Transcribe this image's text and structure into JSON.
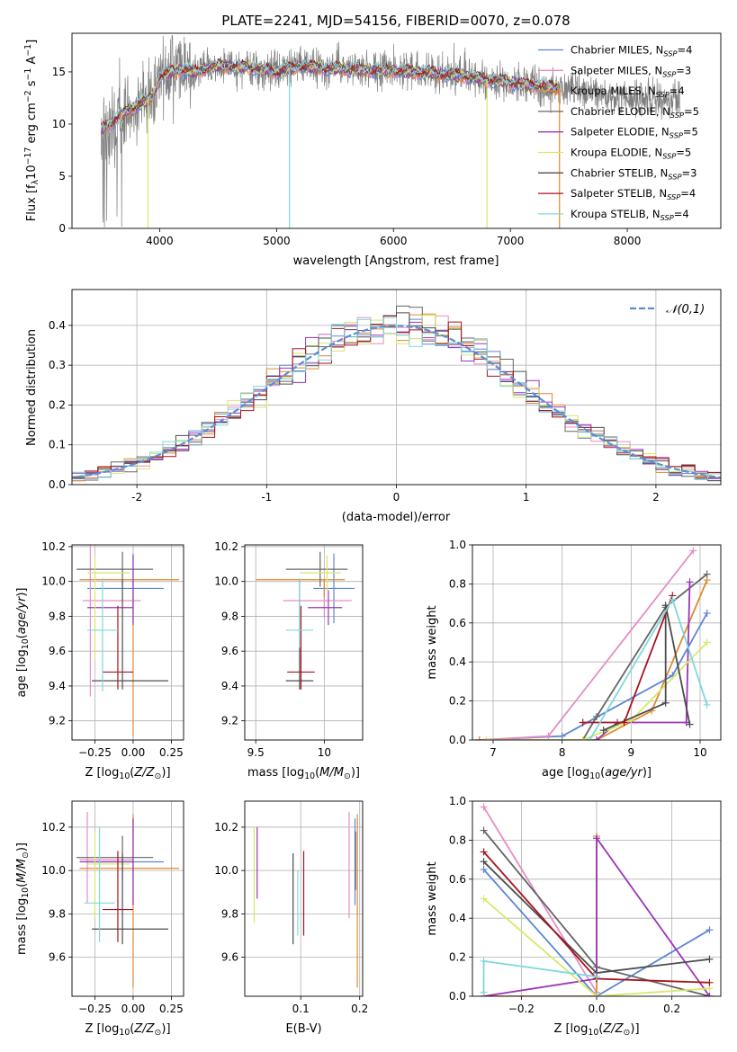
{
  "colors": {
    "Chabrier MILES": "#5b87d6",
    "Salpeter MILES": "#e58ec4",
    "Kroupa MILES": "#e08a2f",
    "Chabrier ELODIE": "#666666",
    "Salpeter ELODIE": "#9b35b9",
    "Kroupa ELODIE": "#d6e86a",
    "Chabrier STELIB": "#4d4d4d",
    "Salpeter STELIB": "#a81320",
    "Kroupa STELIB": "#7fd8dc",
    "data": "#7f7f7f",
    "normal": "#5b8ed6",
    "grid": "#b0b0b0"
  },
  "chart_data": [
    {
      "panel": "spectrum",
      "type": "line",
      "title": "PLATE=2241, MJD=54156, FIBERID=0070, z=0.078",
      "xlabel": "wavelength [Angstrom, rest frame]",
      "ylabel": "Flux [f_λ10^-17 erg cm^-2 s^-1 A^-1]",
      "xlim": [
        3250,
        8800
      ],
      "ylim": [
        0,
        18.7
      ],
      "xticks": [
        4000,
        5000,
        6000,
        7000,
        8000
      ],
      "yticks": [
        0,
        5,
        10,
        15
      ],
      "grid": false,
      "legend_position": "upper-right",
      "legend": [
        {
          "series": "Chabrier MILES",
          "label": "Chabrier MILES, N",
          "sub": "SSP",
          "tail": "=4"
        },
        {
          "series": "Salpeter MILES",
          "label": "Salpeter MILES, N",
          "sub": "SSP",
          "tail": "=3"
        },
        {
          "series": "Kroupa MILES",
          "label": "Kroupa MILES, N",
          "sub": "SSP",
          "tail": "=4"
        },
        {
          "series": "Chabrier ELODIE",
          "label": "Chabrier ELODIE, N",
          "sub": "SSP",
          "tail": "=5"
        },
        {
          "series": "Salpeter ELODIE",
          "label": "Salpeter ELODIE, N",
          "sub": "SSP",
          "tail": "=5"
        },
        {
          "series": "Kroupa ELODIE",
          "label": "Kroupa ELODIE, N",
          "sub": "SSP",
          "tail": "=5"
        },
        {
          "series": "Chabrier STELIB",
          "label": "Chabrier STELIB, N",
          "sub": "SSP",
          "tail": "=3"
        },
        {
          "series": "Salpeter STELIB",
          "label": "Salpeter STELIB, N",
          "sub": "SSP",
          "tail": "=4"
        },
        {
          "series": "Kroupa STELIB",
          "label": "Kroupa STELIB, N",
          "sub": "SSP",
          "tail": "=4"
        }
      ],
      "continuum": [
        [
          3500,
          9.5
        ],
        [
          3600,
          10.2
        ],
        [
          3700,
          11.0
        ],
        [
          3800,
          11.8
        ],
        [
          3900,
          12.3
        ],
        [
          3950,
          12.8
        ],
        [
          4000,
          14.6
        ],
        [
          4100,
          15.0
        ],
        [
          4200,
          15.2
        ],
        [
          4300,
          15.0
        ],
        [
          4500,
          15.6
        ],
        [
          4800,
          15.4
        ],
        [
          5000,
          15.0
        ],
        [
          5200,
          15.5
        ],
        [
          5500,
          15.3
        ],
        [
          6000,
          15.1
        ],
        [
          6300,
          14.9
        ],
        [
          6600,
          14.6
        ],
        [
          7000,
          14.0
        ],
        [
          7500,
          13.3
        ],
        [
          8000,
          12.6
        ],
        [
          8500,
          12.0
        ]
      ],
      "models_start": 3500,
      "models_end": 7420,
      "data_range": [
        3500,
        8450
      ],
      "dips": [
        {
          "series": "Kroupa ELODIE",
          "x": 3900,
          "y": 0
        },
        {
          "series": "Kroupa STELIB",
          "x": 5110,
          "y": 0
        },
        {
          "series": "Kroupa ELODIE",
          "x": 6800,
          "y": 0
        },
        {
          "series": "Kroupa MILES",
          "x": 7420,
          "y": 0
        }
      ]
    },
    {
      "panel": "residuals",
      "type": "histogram",
      "xlabel": "(data-model)/error",
      "ylabel": "Normed distribution",
      "xlim": [
        -2.5,
        2.5
      ],
      "ylim": [
        0,
        0.49
      ],
      "xticks": [
        -2,
        -1,
        0,
        1,
        2
      ],
      "yticks": [
        0.0,
        0.1,
        0.2,
        0.3,
        0.4
      ],
      "grid": true,
      "legend_position": "upper-right",
      "legend_label": "𝒩(0,1)",
      "bin_width": 0.1,
      "sigma": 1.0
    },
    {
      "panel": "age-vs-Z",
      "type": "errorbar",
      "xlabel": "Z [log10(Z/Z⊙)]",
      "ylabel": "age  [log10(age/yr)]",
      "xlim": [
        -0.4,
        0.33
      ],
      "ylim": [
        9.09,
        10.21
      ],
      "xticks": [
        -0.25,
        0.0,
        0.25
      ],
      "xticklabels": [
        "−0.25",
        "0.00",
        "0.25"
      ],
      "yticks": [
        9.2,
        9.4,
        9.6,
        9.8,
        10.0,
        10.2
      ],
      "grid": true,
      "points": [
        {
          "series": "Chabrier MILES",
          "x": 0.0,
          "xerr": [
            0.3,
            0.2
          ],
          "y": 9.96,
          "yerr": [
            0.2,
            0.2
          ]
        },
        {
          "series": "Salpeter MILES",
          "x": -0.28,
          "xerr": [
            0.05,
            0.33
          ],
          "y": 9.89,
          "yerr": [
            0.55,
            0.38
          ]
        },
        {
          "series": "Kroupa MILES",
          "x": 0.0,
          "xerr": [
            0.35,
            0.3
          ],
          "y": 10.01,
          "yerr": [
            0.9,
            0.0
          ]
        },
        {
          "series": "Chabrier ELODIE",
          "x": -0.07,
          "xerr": [
            0.3,
            0.2
          ],
          "y": 10.07,
          "yerr": [
            0.1,
            0.1
          ]
        },
        {
          "series": "Salpeter ELODIE",
          "x": 0.0,
          "xerr": [
            0.3,
            0.0
          ],
          "y": 9.85,
          "yerr": [
            0.1,
            0.3
          ]
        },
        {
          "series": "Kroupa ELODIE",
          "x": -0.25,
          "xerr": [
            0.05,
            0.23
          ],
          "y": 10.05,
          "yerr": [
            0.5,
            0.1
          ]
        },
        {
          "series": "Chabrier STELIB",
          "x": -0.07,
          "xerr": [
            0.2,
            0.3
          ],
          "y": 9.43,
          "yerr": [
            0.05,
            0.58
          ]
        },
        {
          "series": "Salpeter STELIB",
          "x": -0.1,
          "xerr": [
            0.1,
            0.1
          ],
          "y": 9.48,
          "yerr": [
            0.1,
            0.38
          ]
        },
        {
          "series": "Kroupa STELIB",
          "x": -0.2,
          "xerr": [
            0.1,
            0.1
          ],
          "y": 9.72,
          "yerr": [
            0.35,
            0.3
          ]
        }
      ]
    },
    {
      "panel": "age-vs-mass",
      "type": "errorbar",
      "xlabel": "mass [log10(M/M⊙)]",
      "xlim": [
        9.42,
        10.28
      ],
      "ylim": [
        9.09,
        10.21
      ],
      "xticks": [
        9.5,
        10.0
      ],
      "yticks": [
        9.2,
        9.4,
        9.6,
        9.8,
        10.0,
        10.2
      ],
      "grid": true,
      "points": [
        {
          "series": "Chabrier MILES",
          "x": 10.07,
          "xerr": [
            0.15,
            0.15
          ],
          "y": 9.96,
          "yerr": [
            0.2,
            0.2
          ]
        },
        {
          "series": "Salpeter MILES",
          "x": 10.0,
          "xerr": [
            0.3,
            0.2
          ],
          "y": 9.89,
          "yerr": [
            0.1,
            0.1
          ]
        },
        {
          "series": "Kroupa MILES",
          "x": 10.0,
          "xerr": [
            0.5,
            0.15
          ],
          "y": 10.01,
          "yerr": [
            0.1,
            0.0
          ]
        },
        {
          "series": "Chabrier ELODIE",
          "x": 9.97,
          "xerr": [
            0.25,
            0.2
          ],
          "y": 10.07,
          "yerr": [
            0.1,
            0.1
          ]
        },
        {
          "series": "Salpeter ELODIE",
          "x": 10.03,
          "xerr": [
            0.15,
            0.1
          ],
          "y": 9.85,
          "yerr": [
            0.1,
            0.1
          ]
        },
        {
          "series": "Kroupa ELODIE",
          "x": 10.02,
          "xerr": [
            0.2,
            0.1
          ],
          "y": 10.05,
          "yerr": [
            0.1,
            0.1
          ]
        },
        {
          "series": "Chabrier STELIB",
          "x": 9.82,
          "xerr": [
            0.1,
            0.1
          ],
          "y": 9.43,
          "yerr": [
            0.05,
            0.58
          ]
        },
        {
          "series": "Salpeter STELIB",
          "x": 9.83,
          "xerr": [
            0.1,
            0.1
          ],
          "y": 9.48,
          "yerr": [
            0.1,
            0.38
          ]
        },
        {
          "series": "Kroupa STELIB",
          "x": 9.82,
          "xerr": [
            0.1,
            0.1
          ],
          "y": 9.72,
          "yerr": [
            0.1,
            0.3
          ]
        }
      ]
    },
    {
      "panel": "weight-vs-age",
      "type": "line",
      "xlabel": "age  [log10(age/yr)]",
      "ylabel": "mass weight",
      "xlim": [
        6.7,
        10.3
      ],
      "ylim": [
        0,
        1.0
      ],
      "xticks": [
        7,
        8,
        9,
        10
      ],
      "yticks": [
        0.0,
        0.2,
        0.4,
        0.6,
        0.8,
        1.0
      ],
      "grid": true,
      "series": [
        {
          "name": "Chabrier MILES",
          "x": [
            6.8,
            8.0,
            9.6,
            10.1
          ],
          "y": [
            0.0,
            0.02,
            0.33,
            0.65
          ]
        },
        {
          "name": "Salpeter MILES",
          "x": [
            6.8,
            7.8,
            9.9
          ],
          "y": [
            0.0,
            0.02,
            0.97
          ]
        },
        {
          "name": "Kroupa MILES",
          "x": [
            6.8,
            8.5,
            9.3,
            10.1
          ],
          "y": [
            0.0,
            0.0,
            0.15,
            0.82
          ]
        },
        {
          "name": "Chabrier ELODIE",
          "x": [
            8.3,
            8.5,
            9.5,
            10.1
          ],
          "y": [
            0.0,
            0.12,
            0.68,
            0.85
          ]
        },
        {
          "name": "Salpeter ELODIE",
          "x": [
            8.5,
            8.8,
            9.8,
            9.85
          ],
          "y": [
            0.0,
            0.09,
            0.09,
            0.81
          ]
        },
        {
          "name": "Kroupa ELODIE",
          "x": [
            6.9,
            8.3,
            9.0,
            10.1
          ],
          "y": [
            0.0,
            0.0,
            0.1,
            0.5
          ]
        },
        {
          "name": "Chabrier STELIB",
          "x": [
            8.6,
            9.5,
            9.5,
            9.85
          ],
          "y": [
            0.05,
            0.19,
            0.69,
            0.08
          ]
        },
        {
          "name": "Salpeter STELIB",
          "x": [
            8.3,
            8.9,
            9.6
          ],
          "y": [
            0.09,
            0.09,
            0.74
          ]
        },
        {
          "name": "Kroupa STELIB",
          "x": [
            8.4,
            9.6,
            10.1
          ],
          "y": [
            0.0,
            0.72,
            0.18
          ]
        }
      ]
    },
    {
      "panel": "mass-vs-Z",
      "type": "errorbar",
      "xlabel": "Z [log10(Z/Z⊙)]",
      "ylabel": "mass [log10(M/M⊙)]",
      "xlim": [
        -0.4,
        0.33
      ],
      "ylim": [
        9.42,
        10.32
      ],
      "xticks": [
        -0.25,
        0.0,
        0.25
      ],
      "xticklabels": [
        "−0.25",
        "0.00",
        "0.25"
      ],
      "yticks": [
        9.6,
        9.8,
        10.0,
        10.2
      ],
      "grid": true,
      "points": [
        {
          "series": "Chabrier MILES",
          "x": 0.0,
          "xerr": [
            0.3,
            0.2
          ],
          "y": 10.04,
          "yerr": [
            0.2,
            0.2
          ]
        },
        {
          "series": "Salpeter MILES",
          "x": -0.3,
          "xerr": [
            0.05,
            0.3
          ],
          "y": 10.05,
          "yerr": [
            0.2,
            0.22
          ]
        },
        {
          "series": "Kroupa MILES",
          "x": 0.0,
          "xerr": [
            0.35,
            0.3
          ],
          "y": 10.01,
          "yerr": [
            0.55,
            0.25
          ]
        },
        {
          "series": "Chabrier ELODIE",
          "x": -0.07,
          "xerr": [
            0.3,
            0.2
          ],
          "y": 10.06,
          "yerr": [
            0.1,
            0.1
          ]
        },
        {
          "series": "Salpeter ELODIE",
          "x": 0.0,
          "xerr": [
            0.35,
            0.0
          ],
          "y": 10.04,
          "yerr": [
            0.2,
            0.2
          ]
        },
        {
          "series": "Kroupa ELODIE",
          "x": -0.25,
          "xerr": [
            0.05,
            0.23
          ],
          "y": 10.03,
          "yerr": [
            0.25,
            0.15
          ]
        },
        {
          "series": "Chabrier STELIB",
          "x": -0.07,
          "xerr": [
            0.2,
            0.3
          ],
          "y": 9.73,
          "yerr": [
            0.07,
            0.35
          ]
        },
        {
          "series": "Salpeter STELIB",
          "x": -0.1,
          "xerr": [
            0.1,
            0.1
          ],
          "y": 9.82,
          "yerr": [
            0.15,
            0.27
          ]
        },
        {
          "series": "Kroupa STELIB",
          "x": -0.22,
          "xerr": [
            0.1,
            0.1
          ],
          "y": 9.85,
          "yerr": [
            0.18,
            0.35
          ]
        }
      ]
    },
    {
      "panel": "mass-vs-EBV",
      "type": "errorbar",
      "xlabel": "E(B-V)",
      "xlim": [
        0.005,
        0.205
      ],
      "ylim": [
        9.42,
        10.32
      ],
      "xticks": [
        0.1,
        0.2
      ],
      "yticks": [
        9.6,
        9.8,
        10.0,
        10.2
      ],
      "grid": true,
      "points": [
        {
          "series": "Chabrier MILES",
          "x": 0.192,
          "y": 10.04,
          "yerr": [
            0.2,
            0.2
          ]
        },
        {
          "series": "Salpeter MILES",
          "x": 0.182,
          "y": 10.05,
          "yerr": [
            0.27,
            0.22
          ]
        },
        {
          "series": "Kroupa MILES",
          "x": 0.196,
          "y": 10.01,
          "yerr": [
            0.55,
            0.25
          ]
        },
        {
          "series": "Chabrier ELODIE",
          "x": 0.193,
          "y": 10.06,
          "yerr": [
            0.15,
            0.12
          ]
        },
        {
          "series": "Salpeter ELODIE",
          "x": 0.026,
          "y": 10.04,
          "yerr": [
            0.17,
            0.16
          ]
        },
        {
          "series": "Kroupa ELODIE",
          "x": 0.021,
          "y": 10.03,
          "yerr": [
            0.27,
            0.17
          ]
        },
        {
          "series": "Chabrier STELIB",
          "x": 0.087,
          "y": 9.73,
          "yerr": [
            0.07,
            0.35
          ]
        },
        {
          "series": "Salpeter STELIB",
          "x": 0.105,
          "y": 9.82,
          "yerr": [
            0.12,
            0.27
          ]
        },
        {
          "series": "Kroupa STELIB",
          "x": 0.095,
          "y": 9.85,
          "yerr": [
            0.15,
            0.15
          ]
        }
      ]
    },
    {
      "panel": "weight-vs-Z",
      "type": "line",
      "xlabel": "Z [log10(Z/Z⊙)]",
      "ylabel": "mass weight",
      "xlim": [
        -0.33,
        0.33
      ],
      "ylim": [
        0,
        1.0
      ],
      "xticks": [
        -0.2,
        0.0,
        0.2
      ],
      "xticklabels": [
        "−0.2",
        "0.0",
        "0.2"
      ],
      "yticks": [
        0.0,
        0.2,
        0.4,
        0.6,
        0.8,
        1.0
      ],
      "grid": true,
      "series": [
        {
          "name": "Chabrier MILES",
          "x": [
            -0.3,
            0.0,
            0.3
          ],
          "y": [
            0.65,
            0.0,
            0.34
          ]
        },
        {
          "name": "Salpeter MILES",
          "x": [
            -0.3,
            0.0,
            0.0
          ],
          "y": [
            0.97,
            0.02,
            0.0
          ]
        },
        {
          "name": "Kroupa MILES",
          "x": [
            -0.3,
            0.0,
            0.0
          ],
          "y": [
            0.0,
            0.0,
            0.82
          ]
        },
        {
          "name": "Chabrier ELODIE",
          "x": [
            -0.3,
            0.0,
            0.3
          ],
          "y": [
            0.85,
            0.15,
            0.0
          ]
        },
        {
          "name": "Salpeter ELODIE",
          "x": [
            -0.3,
            0.0,
            0.0,
            0.3
          ],
          "y": [
            0.0,
            0.09,
            0.81,
            0.0
          ]
        },
        {
          "name": "Kroupa ELODIE",
          "x": [
            -0.3,
            0.0,
            0.3
          ],
          "y": [
            0.5,
            0.0,
            0.04
          ]
        },
        {
          "name": "Chabrier STELIB",
          "x": [
            -0.3,
            0.0,
            0.3
          ],
          "y": [
            0.69,
            0.12,
            0.19
          ]
        },
        {
          "name": "Salpeter STELIB",
          "x": [
            -0.3,
            0.0,
            0.3
          ],
          "y": [
            0.74,
            0.09,
            0.07
          ]
        },
        {
          "name": "Kroupa STELIB",
          "x": [
            -0.3,
            -0.3,
            0.0
          ],
          "y": [
            0.02,
            0.18,
            0.1
          ]
        }
      ]
    }
  ]
}
